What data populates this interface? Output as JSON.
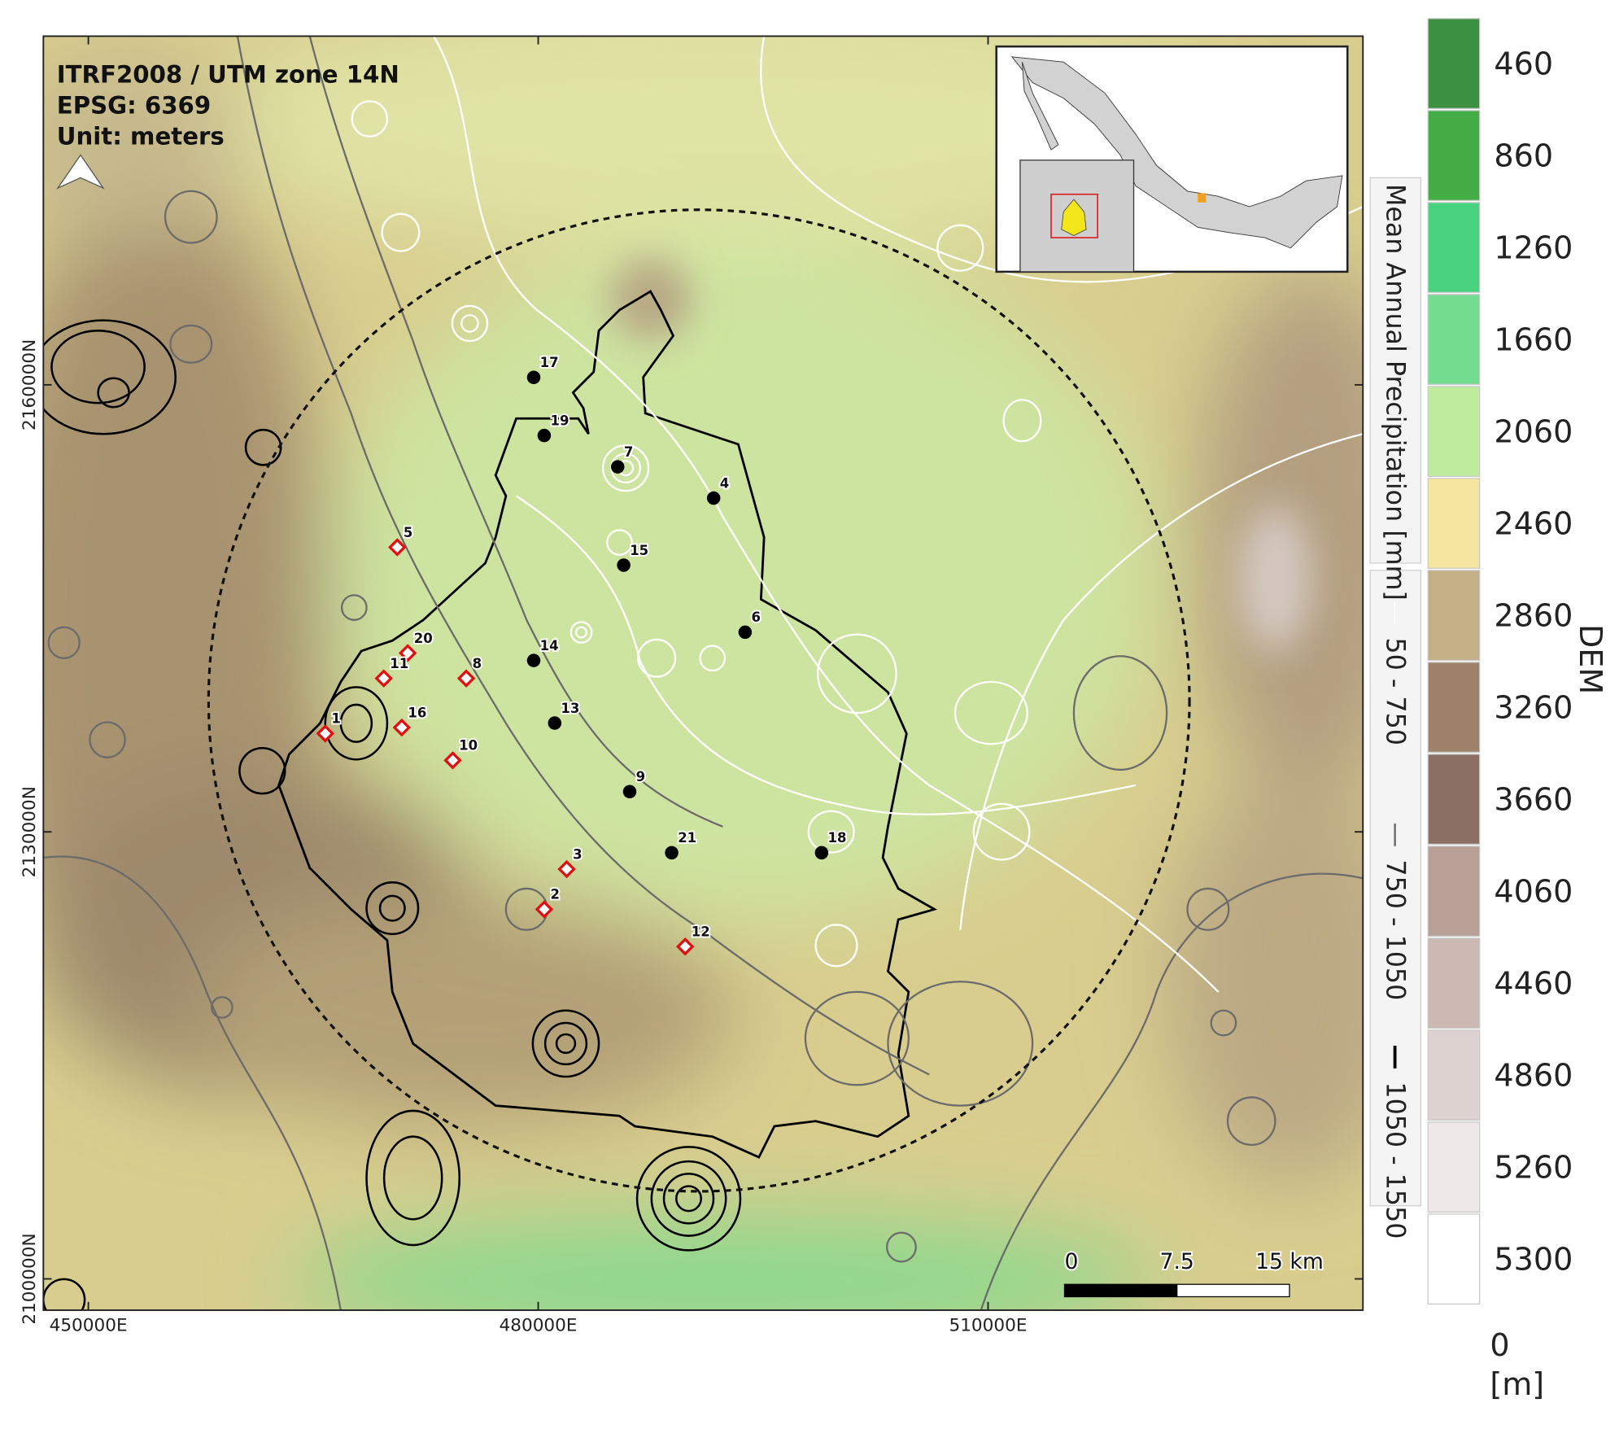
{
  "map": {
    "crs": [
      "ITRF2008 / UTM zone 14N",
      "EPSG: 6369",
      "Unit: meters"
    ],
    "xlim": [
      447000,
      535000
    ],
    "ylim": [
      2097900,
      2183400
    ],
    "xticks": [
      {
        "value": 450000,
        "label": "450000E"
      },
      {
        "value": 480000,
        "label": "480000E"
      },
      {
        "value": 510000,
        "label": "510000E"
      }
    ],
    "yticks": [
      {
        "value": 2100000,
        "label": "2100000N"
      },
      {
        "value": 2130000,
        "label": "2130000N"
      },
      {
        "value": 2160000,
        "label": "2160000N"
      }
    ],
    "stations": [
      {
        "label": "17",
        "symbol": "dot",
        "easting": 479700,
        "northing": 2160500
      },
      {
        "label": "19",
        "symbol": "dot",
        "easting": 480400,
        "northing": 2156600
      },
      {
        "label": "7",
        "symbol": "dot",
        "easting": 485300,
        "northing": 2154500
      },
      {
        "label": "4",
        "symbol": "dot",
        "easting": 491700,
        "northing": 2152400
      },
      {
        "label": "15",
        "symbol": "dot",
        "easting": 485700,
        "northing": 2147900
      },
      {
        "label": "6",
        "symbol": "dot",
        "easting": 493800,
        "northing": 2143400
      },
      {
        "label": "14",
        "symbol": "dot",
        "easting": 479700,
        "northing": 2141500
      },
      {
        "label": "13",
        "symbol": "dot",
        "easting": 481100,
        "northing": 2137300
      },
      {
        "label": "9",
        "symbol": "dot",
        "easting": 486100,
        "northing": 2132700
      },
      {
        "label": "21",
        "symbol": "dot",
        "easting": 488900,
        "northing": 2128600
      },
      {
        "label": "18",
        "symbol": "dot",
        "easting": 498900,
        "northing": 2128600
      },
      {
        "label": "5",
        "symbol": "diamond",
        "easting": 470600,
        "northing": 2149100
      },
      {
        "label": "20",
        "symbol": "diamond",
        "easting": 471300,
        "northing": 2142000
      },
      {
        "label": "11",
        "symbol": "diamond",
        "easting": 469700,
        "northing": 2140300
      },
      {
        "label": "8",
        "symbol": "diamond",
        "easting": 475200,
        "northing": 2140300
      },
      {
        "label": "1",
        "symbol": "diamond",
        "easting": 465800,
        "northing": 2136600
      },
      {
        "label": "16",
        "symbol": "diamond",
        "easting": 470900,
        "northing": 2137000
      },
      {
        "label": "10",
        "symbol": "diamond",
        "easting": 474300,
        "northing": 2134800
      },
      {
        "label": "3",
        "symbol": "diamond",
        "easting": 481900,
        "northing": 2127500
      },
      {
        "label": "2",
        "symbol": "diamond",
        "easting": 480400,
        "northing": 2124800
      },
      {
        "label": "12",
        "symbol": "diamond",
        "easting": 489800,
        "northing": 2122300
      }
    ]
  },
  "scale_bar": {
    "ticks": [
      0,
      7.5,
      {
        "value": 15,
        "label": "15 km"
      }
    ]
  },
  "precipitation_legend": {
    "title": "Mean Annual Precipitation [mm]",
    "items": [
      {
        "label": "50 - 750",
        "color": "#ffffff"
      },
      {
        "label": "750 - 1050",
        "color": "#6e6e6e"
      },
      {
        "label": "1050 - 1550",
        "color": "#000000"
      }
    ]
  },
  "dem_legend": {
    "title": "DEM",
    "min": 0,
    "unit": "[m]",
    "values": [
      460,
      860,
      1260,
      1660,
      2060,
      2460,
      2860,
      3260,
      3660,
      4060,
      4460,
      4860,
      5260,
      5300
    ],
    "colors": [
      "#3b9140",
      "#45ad45",
      "#48d27f",
      "#72dd8f",
      "#bfec9c",
      "#f4e5a1",
      "#c3b086",
      "#9d8169",
      "#8c6f63",
      "#b8a096",
      "#cdb9b3",
      "#ded2d0",
      "#eee9e8",
      "#ffffff"
    ]
  }
}
